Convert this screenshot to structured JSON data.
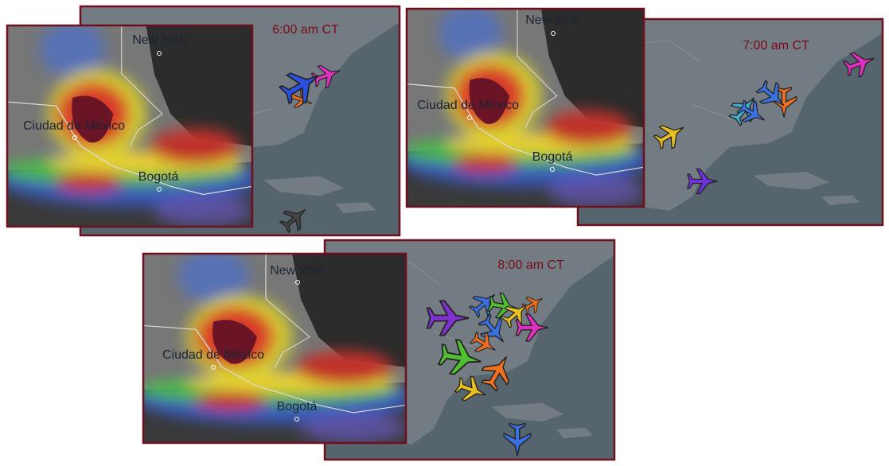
{
  "panels": [
    {
      "time": "6:00 am CT",
      "cities": [
        "New York",
        "Ciudad de México",
        "Bogotá"
      ]
    },
    {
      "time": "7:00 am CT",
      "cities": [
        "New York",
        "Ciudad de México",
        "Bogotá"
      ]
    },
    {
      "time": "8:00 am CT",
      "cities": [
        "New York",
        "Ciudad de México",
        "Bogotá"
      ]
    }
  ]
}
